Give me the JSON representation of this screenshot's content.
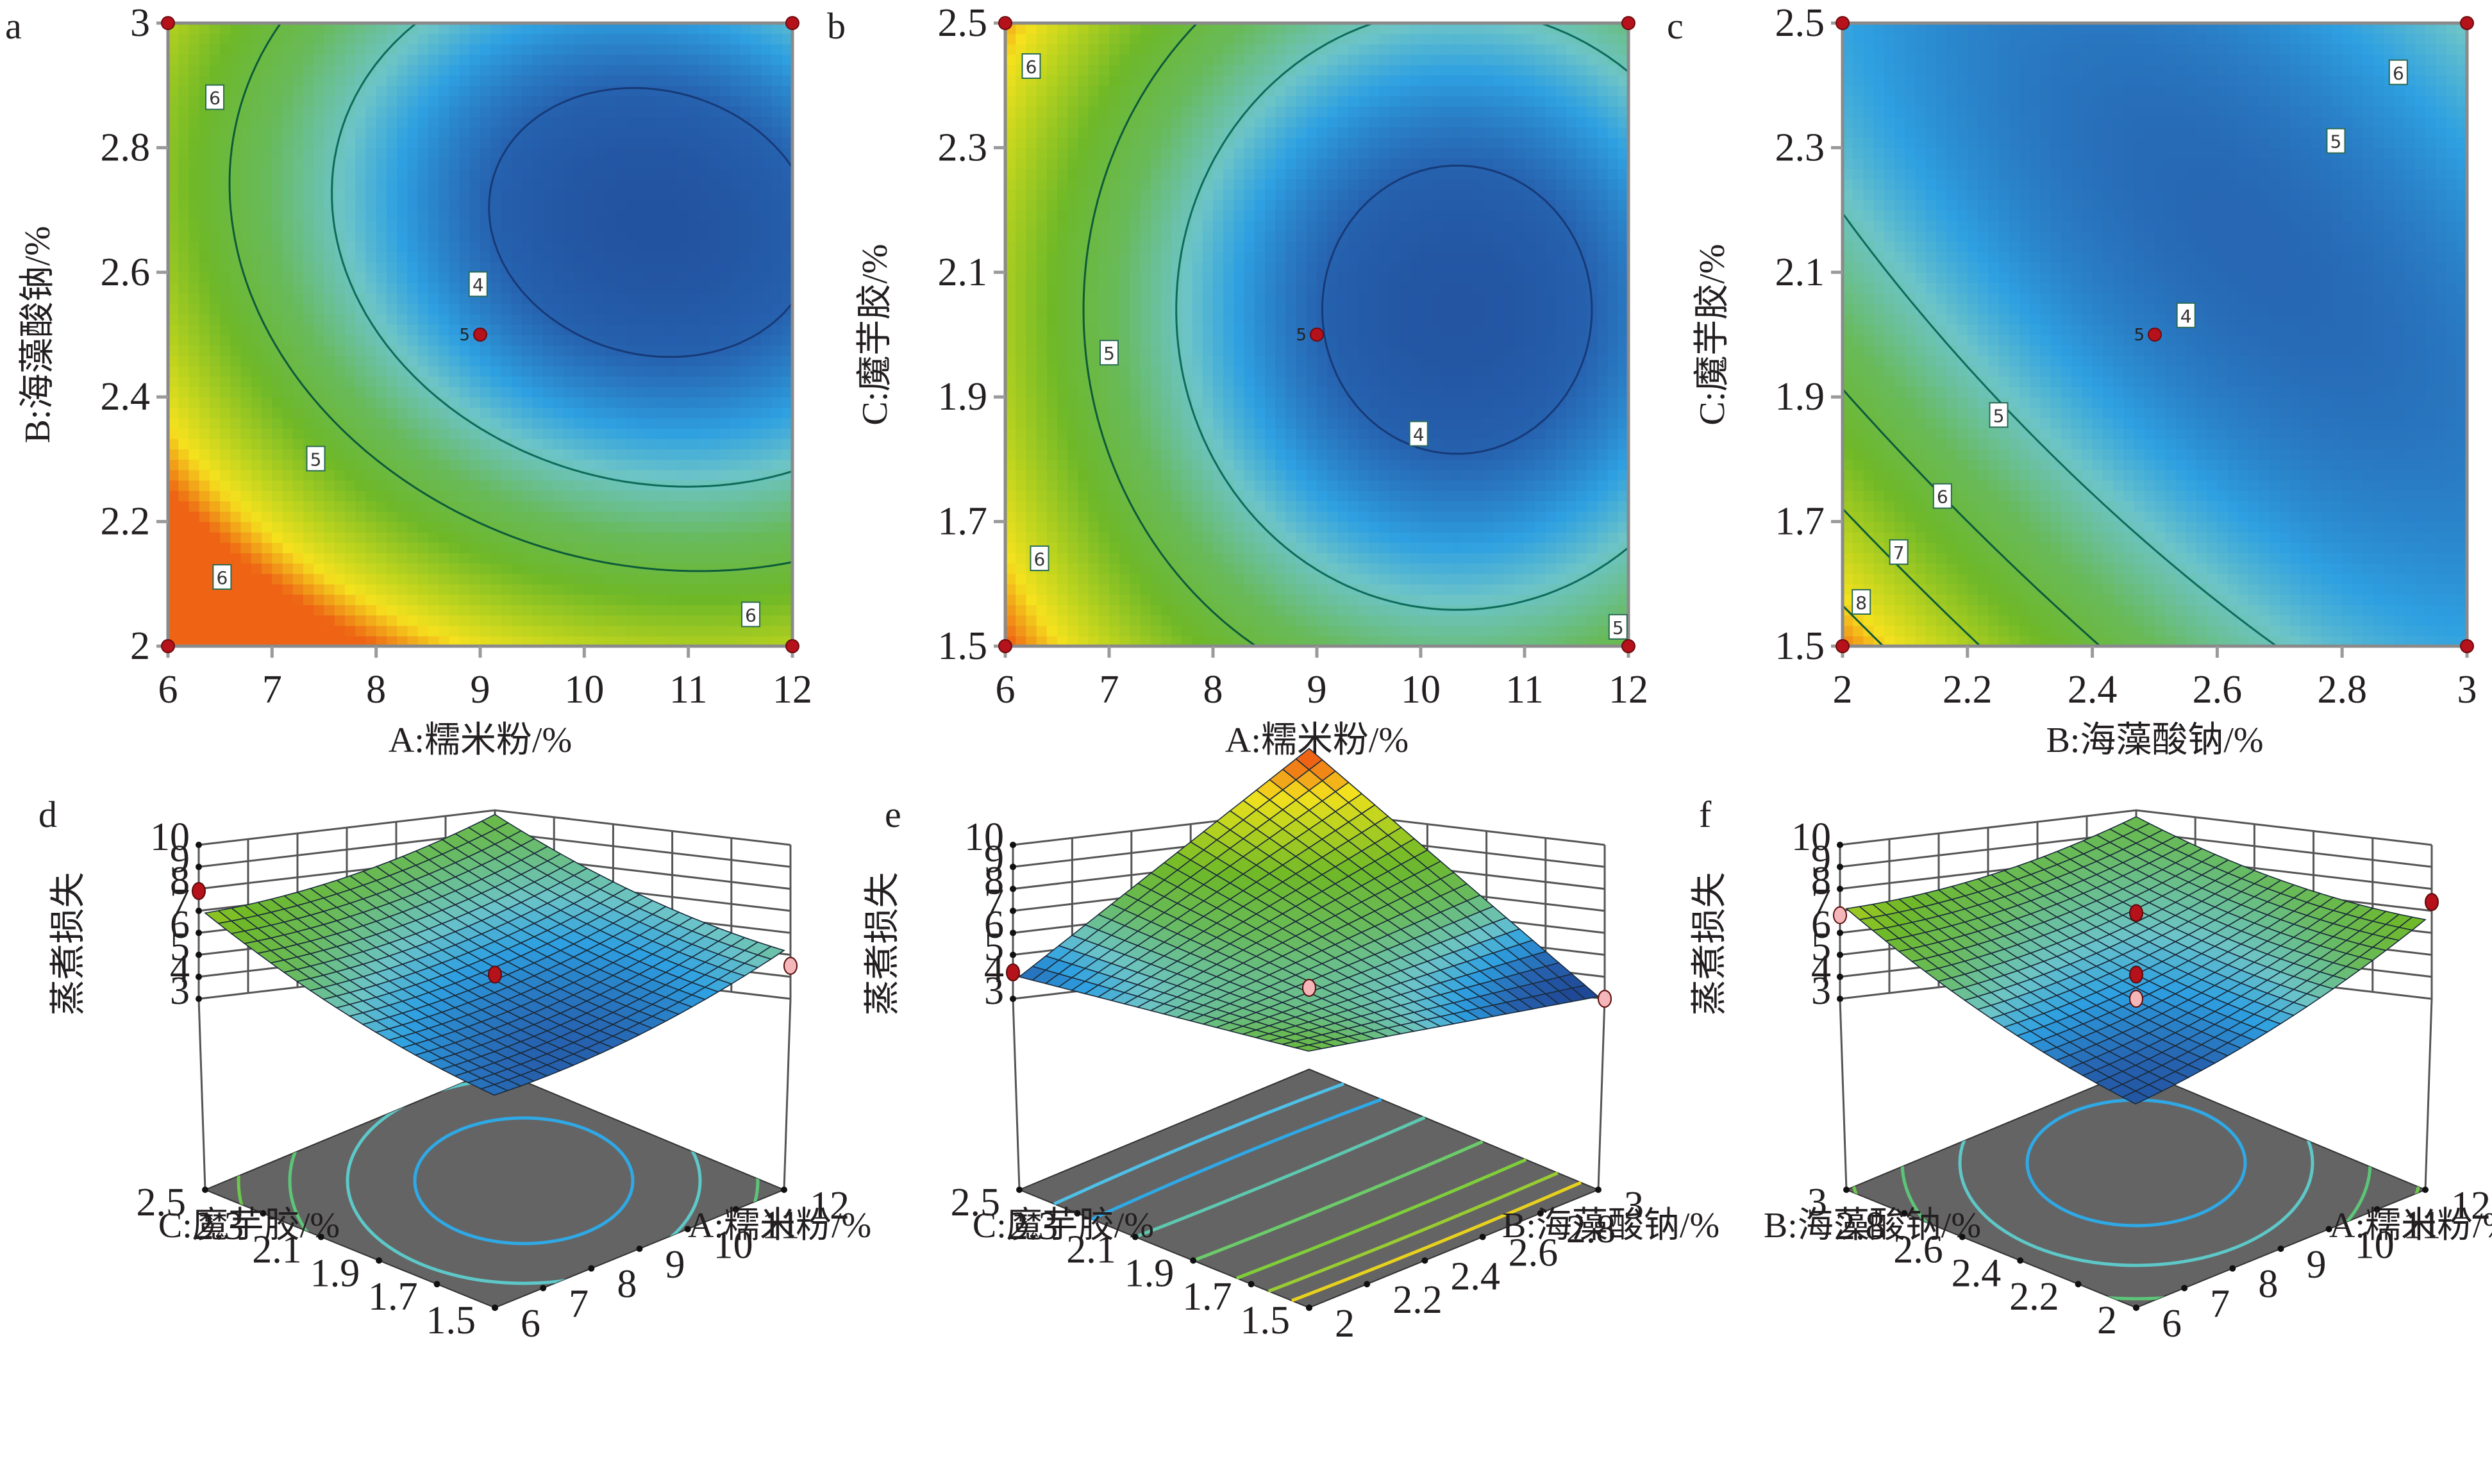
{
  "figure": {
    "panel_labels": [
      "a",
      "b",
      "c",
      "d",
      "e",
      "f"
    ]
  },
  "chart_data": [
    {
      "id": "a",
      "type": "heatmap",
      "subtype": "contour",
      "xlabel": "A:糯米粉/%",
      "ylabel": "B:海藻酸钠/%",
      "xlim": [
        6,
        12
      ],
      "ylim": [
        2,
        3
      ],
      "xticks": [
        "6",
        "7",
        "8",
        "9",
        "10",
        "11",
        "12"
      ],
      "yticks": [
        "2",
        "2.2",
        "2.4",
        "2.6",
        "2.8",
        "3"
      ],
      "contour_levels": [
        4,
        5,
        6
      ],
      "contour_labels": [
        {
          "text": "6",
          "x": 6.45,
          "y": 2.88
        },
        {
          "text": "4",
          "x": 8.98,
          "y": 2.58
        },
        {
          "text": "5",
          "x": 7.42,
          "y": 2.3
        },
        {
          "text": "6",
          "x": 6.52,
          "y": 2.11
        },
        {
          "text": "6",
          "x": 11.6,
          "y": 2.05
        }
      ],
      "design_points": [
        {
          "x": 6,
          "y": 3
        },
        {
          "x": 12,
          "y": 3
        },
        {
          "x": 6,
          "y": 2
        },
        {
          "x": 12,
          "y": 2
        },
        {
          "x": 9,
          "y": 2.5,
          "label": "5"
        }
      ],
      "minimum_region": {
        "x": 10.6,
        "y": 2.68
      },
      "grid": false
    },
    {
      "id": "b",
      "type": "heatmap",
      "subtype": "contour",
      "xlabel": "A:糯米粉/%",
      "ylabel": "C:魔芋胶/%",
      "xlim": [
        6,
        12
      ],
      "ylim": [
        1.5,
        2.5
      ],
      "xticks": [
        "6",
        "7",
        "8",
        "9",
        "10",
        "11",
        "12"
      ],
      "yticks": [
        "1.5",
        "1.7",
        "1.9",
        "2.1",
        "2.3",
        "2.5"
      ],
      "contour_levels": [
        4,
        5,
        6
      ],
      "contour_labels": [
        {
          "text": "6",
          "x": 6.25,
          "y": 2.43
        },
        {
          "text": "5",
          "x": 7.0,
          "y": 1.97
        },
        {
          "text": "4",
          "x": 9.98,
          "y": 1.84
        },
        {
          "text": "6",
          "x": 6.33,
          "y": 1.64
        },
        {
          "text": "5",
          "x": 11.9,
          "y": 1.53
        }
      ],
      "design_points": [
        {
          "x": 6,
          "y": 2.5
        },
        {
          "x": 12,
          "y": 2.5
        },
        {
          "x": 6,
          "y": 1.5
        },
        {
          "x": 12,
          "y": 1.5
        },
        {
          "x": 9,
          "y": 2.0,
          "label": "5"
        }
      ],
      "minimum_region": {
        "x": 10.35,
        "y": 2.04
      },
      "grid": false
    },
    {
      "id": "c",
      "type": "heatmap",
      "subtype": "contour",
      "xlabel": "B:海藻酸钠/%",
      "ylabel": "C:魔芋胶/%",
      "xlim": [
        2,
        3
      ],
      "ylim": [
        1.5,
        2.5
      ],
      "xticks": [
        "2",
        "2.2",
        "2.4",
        "2.6",
        "2.8",
        "3"
      ],
      "yticks": [
        "1.5",
        "1.7",
        "1.9",
        "2.1",
        "2.3",
        "2.5"
      ],
      "contour_levels": [
        4,
        5,
        6,
        7,
        8
      ],
      "contour_labels": [
        {
          "text": "6",
          "x": 2.89,
          "y": 2.42
        },
        {
          "text": "5",
          "x": 2.79,
          "y": 2.31
        },
        {
          "text": "4",
          "x": 2.55,
          "y": 2.03
        },
        {
          "text": "5",
          "x": 2.25,
          "y": 1.87
        },
        {
          "text": "6",
          "x": 2.16,
          "y": 1.74
        },
        {
          "text": "7",
          "x": 2.09,
          "y": 1.65
        },
        {
          "text": "8",
          "x": 2.03,
          "y": 1.57
        }
      ],
      "design_points": [
        {
          "x": 2,
          "y": 2.5
        },
        {
          "x": 3,
          "y": 2.5
        },
        {
          "x": 2,
          "y": 1.5
        },
        {
          "x": 3,
          "y": 1.5
        },
        {
          "x": 2.5,
          "y": 2.0,
          "label": "5"
        }
      ],
      "grid": false
    },
    {
      "id": "d",
      "type": "surface3d",
      "zlabel": "蒸煮损失",
      "zlim": [
        3,
        10
      ],
      "zticks": [
        "3",
        "4",
        "5",
        "6",
        "7",
        "8",
        "9",
        "10"
      ],
      "left_axis": {
        "label": "C:魔芋胶/%",
        "range": [
          1.5,
          2.5
        ],
        "ticks": [
          "2.5",
          "2.3",
          "2.1",
          "1.9",
          "1.7",
          "1.5"
        ]
      },
      "right_axis": {
        "label": "A:糯米粉/%",
        "range": [
          6,
          12
        ],
        "ticks": [
          "12",
          "11",
          "10",
          "9",
          "8",
          "7",
          "6"
        ]
      },
      "surface_corners": {
        "back": 5.9,
        "left": 6.9,
        "right": 5.2,
        "front": 4.1
      },
      "surface_min": 3.6,
      "design_points": [
        {
          "pos": "left",
          "z": 7.9,
          "color": "#b5121b"
        },
        {
          "pos": "center",
          "z": 4.1,
          "color": "#b5121b"
        },
        {
          "pos": "right",
          "z": 4.5,
          "color": "#f4b6b8"
        }
      ]
    },
    {
      "id": "e",
      "type": "surface3d",
      "zlabel": "蒸煮损失",
      "zlim": [
        3,
        10
      ],
      "zticks": [
        "3",
        "4",
        "5",
        "6",
        "7",
        "8",
        "9",
        "10"
      ],
      "left_axis": {
        "label": "C:魔芋胶/%",
        "range": [
          1.5,
          2.5
        ],
        "ticks": [
          "2.5",
          "2.3",
          "2.1",
          "1.9",
          "1.7",
          "1.5"
        ]
      },
      "right_axis": {
        "label": "B:海藻酸钠/%",
        "range": [
          2,
          3
        ],
        "ticks": [
          "3",
          "2.8",
          "2.6",
          "2.4",
          "2.2",
          "2"
        ]
      },
      "surface_corners": {
        "back": 8.9,
        "left": 4.0,
        "right": 3.1,
        "front": 6.1
      },
      "design_points": [
        {
          "pos": "left",
          "z": 4.2,
          "color": "#b5121b"
        },
        {
          "pos": "center",
          "z": 3.5,
          "color": "#f4b6b8"
        },
        {
          "pos": "right",
          "z": 3.0,
          "color": "#f4b6b8"
        }
      ]
    },
    {
      "id": "f",
      "type": "surface3d",
      "zlabel": "蒸煮损失",
      "zlim": [
        3,
        10
      ],
      "zticks": [
        "3",
        "4",
        "5",
        "6",
        "7",
        "8",
        "9",
        "10"
      ],
      "left_axis": {
        "label": "B:海藻酸钠/%",
        "range": [
          2,
          3
        ],
        "ticks": [
          "3",
          "2.8",
          "2.6",
          "2.4",
          "2.2",
          "2"
        ]
      },
      "right_axis": {
        "label": "A:糯米粉/%",
        "range": [
          6,
          12
        ],
        "ticks": [
          "12",
          "11",
          "10",
          "9",
          "8",
          "7",
          "6"
        ]
      },
      "surface_corners": {
        "back": 5.8,
        "left": 7.1,
        "right": 6.6,
        "front": 3.7
      },
      "surface_min": 3.6,
      "design_points": [
        {
          "pos": "left",
          "z": 6.8,
          "color": "#f4b6b8"
        },
        {
          "pos": "center_high",
          "z": 6.9,
          "color": "#b5121b"
        },
        {
          "pos": "center",
          "z": 4.1,
          "color": "#b5121b"
        },
        {
          "pos": "center_low",
          "z": 3.0,
          "color": "#f4b6b8"
        },
        {
          "pos": "right",
          "z": 7.4,
          "color": "#b5121b"
        }
      ]
    }
  ],
  "colors": {
    "low": "#1f4fa0",
    "midlow": "#2fa9e6",
    "mid": "#6ec6c8",
    "midhigh": "#6db94a",
    "high": "#f2e21c",
    "peak": "#ee6a12",
    "design_point": "#b5121b",
    "design_point_light": "#f4b6b8",
    "floor": "#646464",
    "frame": "#7a7a7a"
  }
}
